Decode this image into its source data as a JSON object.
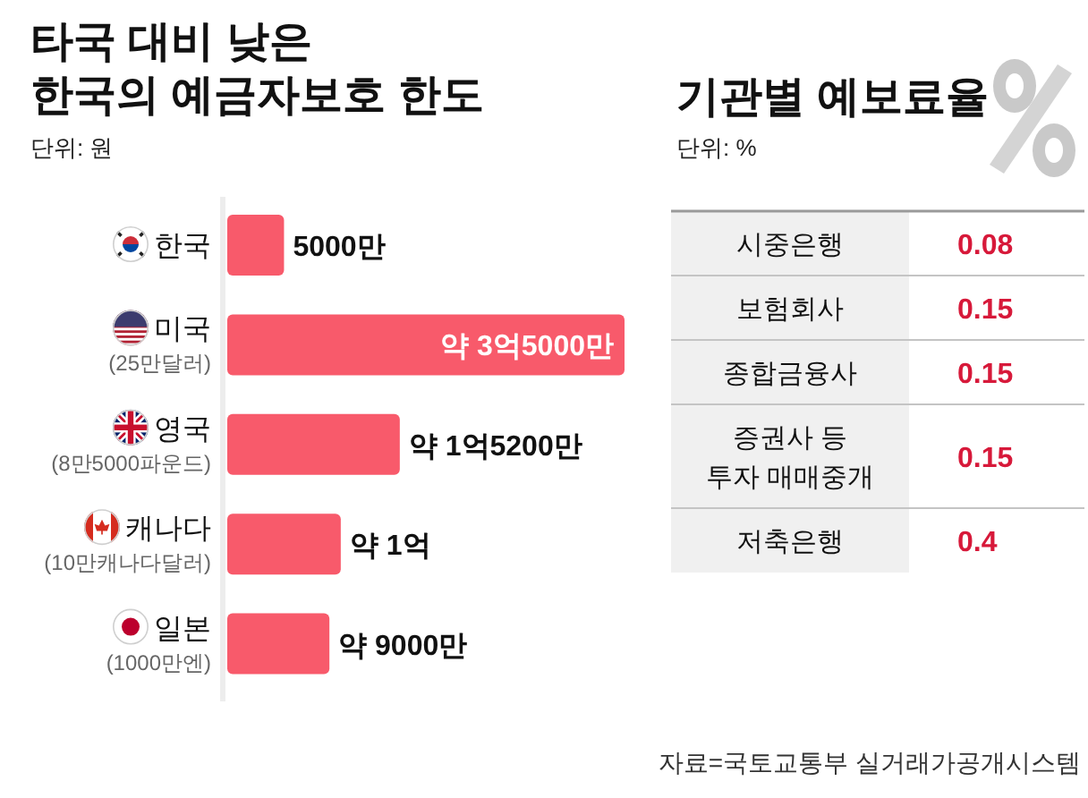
{
  "chart_data": [
    {
      "type": "bar",
      "orientation": "horizontal",
      "title": "타국 대비 낮은\n한국의 예금자보호 한도",
      "subtitle": "단위: 원",
      "categories": [
        "한국",
        "미국 $_{(25만달러)}$",
        "영국 $_{(8만5000파운드)}$",
        "캐나다 $_{(10만캐나다달러)}$",
        "일본 $_{(1000만엔)}$"
      ],
      "values": [
        5000,
        35000,
        15200,
        10000,
        9000
      ],
      "value_labels": [
        "5000만",
        "약 3억5000만",
        "약 1억5200만",
        "약 1억",
        "약 9000만"
      ],
      "color": "#f85a6b"
    },
    {
      "type": "other",
      "title": "기관별 예보료율",
      "subtitle": "단위: %",
      "categories": [
        "시중은행",
        "보험회사",
        "종합금융사",
        "증권사 등\n투자 매매중개",
        "저축은행"
      ],
      "values": [
        0.08,
        0.15,
        0.15,
        0.15,
        0.4
      ],
      "data_labels": true,
      "color": "#d7193a",
      "annotations": [
        "자료=국토교통부 실거래가공개시스템"
      ]
    }
  ]
}
